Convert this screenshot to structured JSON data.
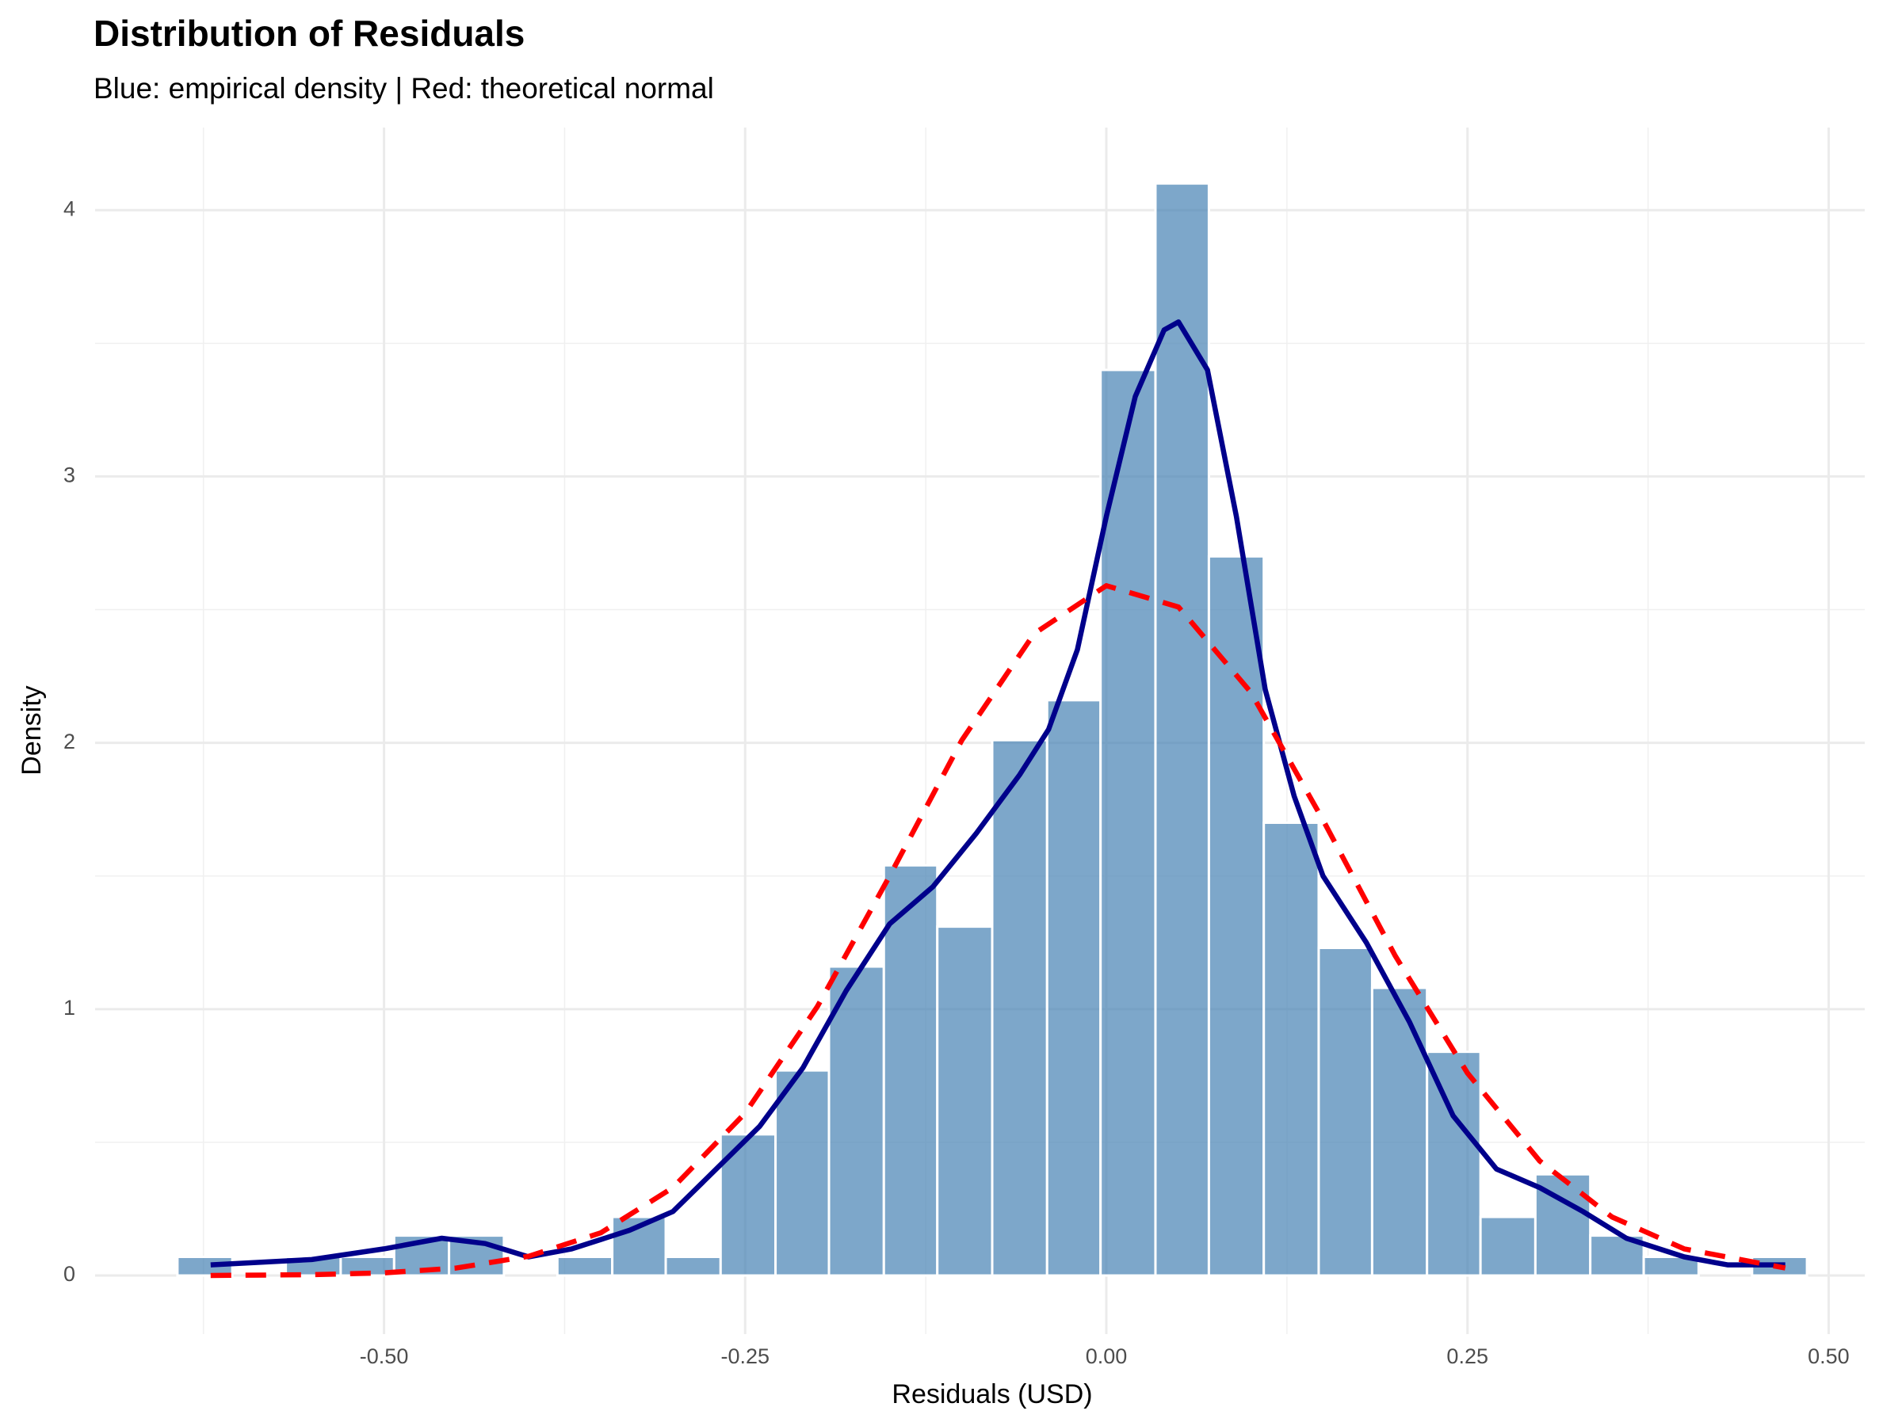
{
  "chart_data": {
    "type": "histogram",
    "title": "Distribution of Residuals",
    "subtitle": "Blue: empirical density | Red: theoretical normal",
    "x_label": "Residuals (USD)",
    "y_label": "Density",
    "bins": [
      -0.643,
      -0.605,
      -0.568,
      -0.53,
      -0.493,
      -0.455,
      -0.417,
      -0.38,
      -0.342,
      -0.305,
      -0.267,
      -0.229,
      -0.192,
      -0.154,
      -0.117,
      -0.079,
      -0.041,
      -0.004,
      0.034,
      0.071,
      0.109,
      0.147,
      0.184,
      0.222,
      0.259,
      0.297,
      0.335,
      0.372,
      0.41,
      0.447,
      0.485
    ],
    "values": [
      0.07,
      0,
      0.07,
      0.07,
      0.15,
      0.15,
      0,
      0.07,
      0.22,
      0.07,
      0.53,
      0.77,
      1.16,
      1.54,
      1.31,
      2.01,
      2.16,
      3.4,
      4.1,
      2.7,
      1.7,
      1.23,
      1.08,
      0.84,
      0.22,
      0.38,
      0.15,
      0.07,
      0,
      0.07
    ],
    "color": "#4682b4",
    "curves": [
      {
        "color": "#00008b",
        "dashed": false,
        "x": [
          -0.62,
          -0.55,
          -0.5,
          -0.46,
          -0.43,
          -0.4,
          -0.37,
          -0.33,
          -0.3,
          -0.27,
          -0.24,
          -0.21,
          -0.18,
          -0.15,
          -0.12,
          -0.09,
          -0.06,
          -0.04,
          -0.02,
          0.0,
          0.02,
          0.04,
          0.05,
          0.07,
          0.09,
          0.11,
          0.13,
          0.15,
          0.18,
          0.21,
          0.24,
          0.27,
          0.3,
          0.33,
          0.36,
          0.4,
          0.43,
          0.47
        ],
        "values": [
          0.04,
          0.06,
          0.1,
          0.14,
          0.12,
          0.07,
          0.1,
          0.17,
          0.24,
          0.4,
          0.56,
          0.78,
          1.07,
          1.32,
          1.46,
          1.66,
          1.88,
          2.05,
          2.35,
          2.85,
          3.3,
          3.55,
          3.58,
          3.4,
          2.85,
          2.2,
          1.8,
          1.5,
          1.25,
          0.95,
          0.6,
          0.4,
          0.33,
          0.24,
          0.14,
          0.07,
          0.04,
          0.04
        ]
      },
      {
        "color": "#ff0000",
        "dashed": true,
        "x": [
          -0.62,
          -0.55,
          -0.5,
          -0.45,
          -0.4,
          -0.35,
          -0.3,
          -0.25,
          -0.2,
          -0.15,
          -0.1,
          -0.05,
          0.0,
          0.05,
          0.1,
          0.15,
          0.2,
          0.25,
          0.3,
          0.35,
          0.4,
          0.47
        ],
        "values": [
          0.0,
          0.003,
          0.01,
          0.028,
          0.072,
          0.16,
          0.33,
          0.61,
          1.01,
          1.5,
          2.01,
          2.41,
          2.59,
          2.51,
          2.19,
          1.71,
          1.2,
          0.76,
          0.43,
          0.22,
          0.1,
          0.028
        ]
      }
    ],
    "xlim": [
      -0.7,
      0.525
    ],
    "ylim": [
      -0.22,
      4.31
    ],
    "xticks": [
      {
        "value": -0.5,
        "label": "-0.50"
      },
      {
        "value": -0.25,
        "label": "-0.25"
      },
      {
        "value": 0,
        "label": "0.00"
      },
      {
        "value": 0.25,
        "label": "0.25"
      },
      {
        "value": 0.5,
        "label": "0.50"
      }
    ],
    "yticks": [
      0,
      1,
      2,
      3,
      4
    ],
    "x_minor_grid": [
      -0.625,
      -0.375,
      -0.125,
      0.125,
      0.375
    ],
    "y_minor_grid": [
      0.5,
      1.5,
      2.5,
      3.5
    ],
    "grid": true
  }
}
